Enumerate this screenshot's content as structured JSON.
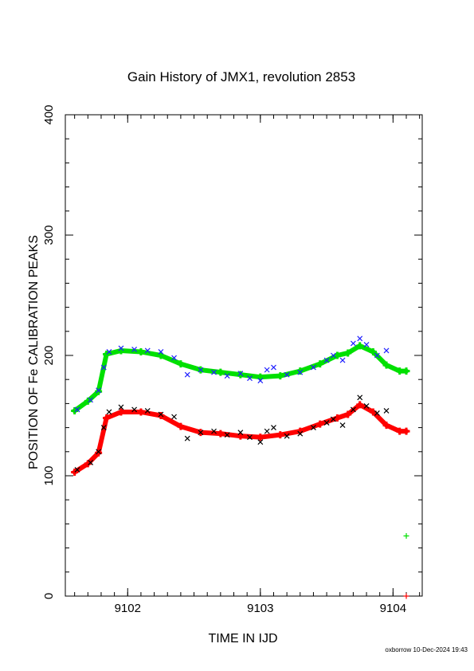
{
  "chart_data": {
    "type": "scatter",
    "title": "Gain History of JMX1, revolution 2853",
    "xlabel": "TIME IN IJD",
    "ylabel": "POSITION OF Fe CALIBRATION PEAKS",
    "xlim": [
      9101.53,
      9104.22
    ],
    "ylim": [
      0,
      400
    ],
    "xticks": [
      9102,
      9103,
      9104
    ],
    "xtick_labels": [
      "9102",
      "9103",
      "9104"
    ],
    "yticks": [
      0,
      100,
      200,
      300,
      400
    ],
    "ytick_labels": [
      "0",
      "100",
      "200",
      "300",
      "400"
    ],
    "grid": false,
    "footer": "oxborrow 10-Dec-2024 19:43",
    "series": [
      {
        "color": "#00e000",
        "marker": "+",
        "x": [
          9101.6,
          9101.7,
          9101.78,
          9101.84,
          9101.95,
          9102.1,
          9102.25,
          9102.4,
          9102.55,
          9102.7,
          9102.85,
          9103.0,
          9103.15,
          9103.3,
          9103.45,
          9103.58,
          9103.66,
          9103.75,
          9103.85,
          9103.95,
          9104.05,
          9104.1
        ],
        "y": [
          154,
          162,
          170,
          201,
          204,
          203,
          200,
          193,
          188,
          186,
          184,
          182,
          183,
          187,
          193,
          200,
          202,
          208,
          203,
          192,
          187,
          187
        ]
      },
      {
        "color": "#2020ff",
        "marker": "x",
        "x": [
          9101.62,
          9101.72,
          9101.78,
          9101.82,
          9101.86,
          9101.95,
          9102.05,
          9102.15,
          9102.25,
          9102.35,
          9102.45,
          9102.55,
          9102.65,
          9102.75,
          9102.85,
          9102.92,
          9103.0,
          9103.05,
          9103.1,
          9103.2,
          9103.3,
          9103.4,
          9103.5,
          9103.55,
          9103.62,
          9103.7,
          9103.75,
          9103.8,
          9103.88,
          9103.95
        ],
        "y": [
          155,
          163,
          171,
          190,
          203,
          206,
          205,
          204,
          203,
          198,
          184,
          188,
          186,
          183,
          185,
          181,
          179,
          188,
          190,
          184,
          186,
          190,
          196,
          200,
          196,
          210,
          214,
          209,
          200,
          204
        ]
      },
      {
        "color": "#ff0000",
        "marker": "+",
        "x": [
          9101.6,
          9101.7,
          9101.78,
          9101.84,
          9101.95,
          9102.1,
          9102.25,
          9102.4,
          9102.55,
          9102.7,
          9102.85,
          9103.0,
          9103.15,
          9103.3,
          9103.45,
          9103.58,
          9103.66,
          9103.75,
          9103.85,
          9103.95,
          9104.05,
          9104.1
        ],
        "y": [
          103,
          110,
          119,
          148,
          153,
          153,
          150,
          141,
          136,
          135,
          133,
          132,
          134,
          137,
          143,
          148,
          151,
          159,
          153,
          142,
          137,
          137
        ]
      },
      {
        "color": "#000000",
        "marker": "x",
        "x": [
          9101.62,
          9101.72,
          9101.78,
          9101.82,
          9101.86,
          9101.95,
          9102.05,
          9102.15,
          9102.25,
          9102.35,
          9102.45,
          9102.55,
          9102.65,
          9102.75,
          9102.85,
          9102.92,
          9103.0,
          9103.05,
          9103.1,
          9103.2,
          9103.3,
          9103.4,
          9103.5,
          9103.55,
          9103.62,
          9103.7,
          9103.75,
          9103.8,
          9103.88,
          9103.95
        ],
        "y": [
          105,
          111,
          120,
          140,
          153,
          157,
          155,
          154,
          151,
          149,
          131,
          136,
          137,
          134,
          136,
          132,
          128,
          137,
          140,
          133,
          135,
          140,
          144,
          147,
          142,
          155,
          165,
          158,
          152,
          154
        ]
      },
      {
        "color": "#00e000",
        "marker": "+",
        "x": [
          9104.1
        ],
        "y": [
          50
        ]
      },
      {
        "color": "#ff0000",
        "marker": "+",
        "x": [
          9104.1
        ],
        "y": [
          0
        ]
      }
    ]
  }
}
